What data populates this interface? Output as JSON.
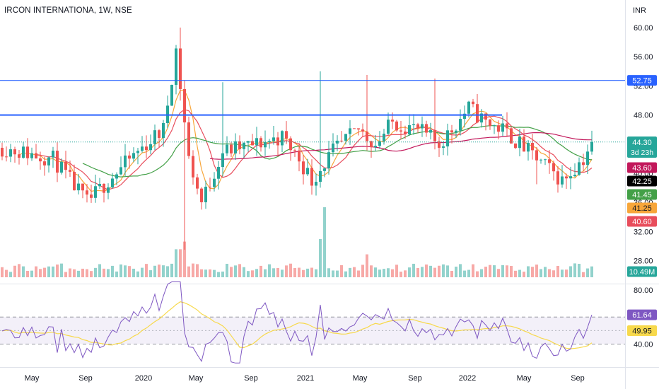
{
  "header": {
    "symbol": "IRCON INTERNATIONA, 1W, NSE"
  },
  "price_axis": {
    "currency": "INR",
    "ticks": [
      "60.00",
      "56.00",
      "52.00",
      "48.00",
      "44.00",
      "40.00",
      "36.00",
      "32.00",
      "28.00"
    ]
  },
  "rsi_axis": {
    "ticks": [
      "80.00",
      "40.00"
    ]
  },
  "time_axis": {
    "labels": [
      "May",
      "Sep",
      "2020",
      "May",
      "Sep",
      "2021",
      "May",
      "Sep",
      "2022",
      "May",
      "Sep"
    ]
  },
  "badges": {
    "hline_upper": "52.75",
    "last_price": "44.30",
    "countdown": "3d 23h",
    "ma_1": "43.60",
    "ma_2": "42.25",
    "ma_3": "41.45",
    "ma_4": "41.25",
    "ma_5": "40.60",
    "volume": "10.49M",
    "rsi": "61.64",
    "rsi_ma": "49.95"
  },
  "colors": {
    "up": "#26a69a",
    "down": "#ef5350",
    "rsi": "#7e57c2",
    "rsi_ma": "#f7d94c",
    "hline": "#2962ff"
  },
  "chart_data": [
    {
      "type": "candlestick",
      "title": "IRCON INTERNATIONA, 1W, NSE",
      "ylabel": "INR",
      "ylim": [
        26,
        62
      ],
      "horizontal_lines": [
        52.75,
        48.0
      ],
      "last_price": 44.3,
      "key_points": [
        {
          "period": "Mar 2020",
          "high": 60.0,
          "low": 29.5
        },
        {
          "period": "May 2020",
          "high": 52.5
        },
        {
          "period": "Feb 2021",
          "high": 54.0
        },
        {
          "period": "May 2021",
          "high": 53.5
        },
        {
          "period": "Oct 2021",
          "high": 53.0
        },
        {
          "period": "Jun 2022",
          "low": 38.5
        },
        {
          "period": "Sep 2022",
          "close": 44.3
        }
      ],
      "moving_averages": [
        43.6,
        42.25,
        41.45,
        41.25,
        40.6
      ]
    },
    {
      "type": "bar",
      "ylabel": "Volume",
      "last_value": "10.49M"
    },
    {
      "type": "line",
      "ylabel": "RSI",
      "ylim": [
        20,
        90
      ],
      "bands": [
        40,
        60
      ],
      "last_value": 61.64,
      "ma_last_value": 49.95
    }
  ]
}
